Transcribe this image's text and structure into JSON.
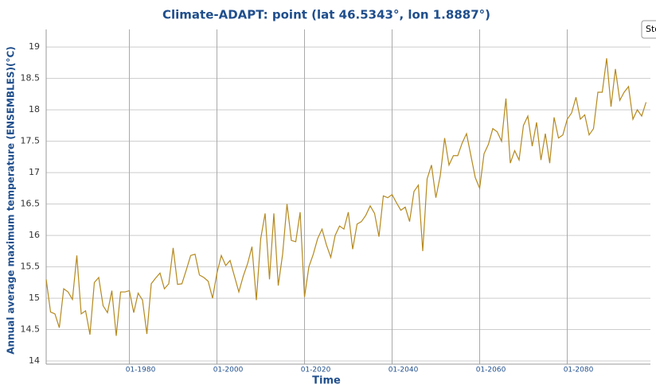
{
  "chart_data": {
    "type": "line",
    "title": "Climate-ADAPT: point (lat 46.5343°, lon 1.8887°)",
    "x_label": "Time",
    "y_label": "Annual average maximum temperature (ENSEMBLES)(°C)",
    "button_label": "Sto",
    "x": [
      "1961-01",
      "1962-01",
      "1963-01",
      "1964-01",
      "1965-01",
      "1966-01",
      "1967-01",
      "1968-01",
      "1969-01",
      "1970-01",
      "1971-01",
      "1972-01",
      "1973-01",
      "1974-01",
      "1975-01",
      "1976-01",
      "1977-01",
      "1978-01",
      "1979-01",
      "1980-01",
      "1981-01",
      "1982-01",
      "1983-01",
      "1984-01",
      "1985-01",
      "1986-01",
      "1987-01",
      "1988-01",
      "1989-01",
      "1990-01",
      "1991-01",
      "1992-01",
      "1993-01",
      "1994-01",
      "1995-01",
      "1996-01",
      "1997-01",
      "1998-01",
      "1999-01",
      "2000-01",
      "2001-01",
      "2002-01",
      "2003-01",
      "2004-01",
      "2005-01",
      "2006-01",
      "2007-01",
      "2008-01",
      "2009-01",
      "2010-01",
      "2011-01",
      "2012-01",
      "2013-01",
      "2014-01",
      "2015-01",
      "2016-01",
      "2017-01",
      "2018-01",
      "2019-01",
      "2020-01",
      "2021-01",
      "2022-01",
      "2023-01",
      "2024-01",
      "2025-01",
      "2026-01",
      "2027-01",
      "2028-01",
      "2029-01",
      "2030-01",
      "2031-01",
      "2032-01",
      "2033-01",
      "2034-01",
      "2035-01",
      "2036-01",
      "2037-01",
      "2038-01",
      "2039-01",
      "2040-01",
      "2041-01",
      "2042-01",
      "2043-01",
      "2044-01",
      "2045-01",
      "2046-01",
      "2047-01",
      "2048-01",
      "2049-01",
      "2050-01",
      "2051-01",
      "2052-01",
      "2053-01",
      "2054-01",
      "2055-01",
      "2056-01",
      "2057-01",
      "2058-01",
      "2059-01",
      "2060-01",
      "2061-01",
      "2062-01",
      "2063-01",
      "2064-01",
      "2065-01",
      "2066-01",
      "2067-01",
      "2068-01",
      "2069-01",
      "2070-01",
      "2071-01",
      "2072-01",
      "2073-01",
      "2074-01",
      "2075-01",
      "2076-01",
      "2077-01",
      "2078-01",
      "2079-01",
      "2080-01",
      "2081-01",
      "2082-01",
      "2083-01",
      "2084-01",
      "2085-01",
      "2086-01",
      "2087-01",
      "2088-01",
      "2089-01",
      "2090-01",
      "2091-01",
      "2092-01",
      "2093-01",
      "2094-01",
      "2095-01",
      "2096-01",
      "2097-01",
      "2098-01"
    ],
    "series": [
      {
        "color": "#b5891f",
        "values": [
          15.3,
          14.78,
          14.75,
          14.53,
          15.15,
          15.1,
          14.98,
          15.68,
          14.75,
          14.8,
          14.42,
          15.25,
          15.33,
          14.88,
          14.77,
          15.12,
          14.4,
          15.1,
          15.1,
          15.12,
          14.77,
          15.08,
          14.97,
          14.43,
          15.23,
          15.32,
          15.4,
          15.15,
          15.23,
          15.8,
          15.22,
          15.23,
          15.45,
          15.68,
          15.7,
          15.37,
          15.33,
          15.27,
          15.0,
          15.4,
          15.68,
          15.52,
          15.6,
          15.35,
          15.1,
          15.35,
          15.55,
          15.82,
          14.97,
          15.95,
          16.35,
          15.3,
          16.35,
          15.2,
          15.7,
          16.5,
          15.92,
          15.9,
          16.37,
          15.02,
          15.5,
          15.7,
          15.95,
          16.1,
          15.85,
          15.65,
          16.0,
          16.15,
          16.1,
          16.37,
          15.78,
          16.18,
          16.22,
          16.32,
          16.47,
          16.35,
          15.98,
          16.63,
          16.6,
          16.65,
          16.52,
          16.4,
          16.45,
          16.22,
          16.7,
          16.8,
          15.75,
          16.9,
          17.12,
          16.6,
          16.95,
          17.55,
          17.12,
          17.27,
          17.27,
          17.47,
          17.62,
          17.27,
          16.92,
          16.75,
          17.3,
          17.45,
          17.7,
          17.65,
          17.5,
          18.18,
          17.15,
          17.35,
          17.2,
          17.75,
          17.9,
          17.42,
          17.8,
          17.2,
          17.62,
          17.15,
          17.88,
          17.55,
          17.6,
          17.85,
          17.95,
          18.2,
          17.85,
          17.92,
          17.6,
          17.7,
          18.28,
          18.28,
          18.82,
          18.05,
          18.65,
          18.15,
          18.28,
          18.37,
          17.85,
          18.0,
          17.9,
          18.12
        ]
      }
    ],
    "xlim": [
      "1961-01",
      "2099-01"
    ],
    "xticks": [
      {
        "value": "1980-01",
        "label": "01-1980"
      },
      {
        "value": "2000-01",
        "label": "01-2000"
      },
      {
        "value": "2020-01",
        "label": "01-2020"
      },
      {
        "value": "2040-01",
        "label": "01-2040"
      },
      {
        "value": "2060-01",
        "label": "01-2060"
      },
      {
        "value": "2080-01",
        "label": "01-2080"
      }
    ],
    "ylim": [
      13.95,
      19.28
    ],
    "yticks": [
      14,
      14.5,
      15,
      15.5,
      16,
      16.5,
      17,
      17.5,
      18,
      18.5,
      19
    ],
    "grid": true
  }
}
